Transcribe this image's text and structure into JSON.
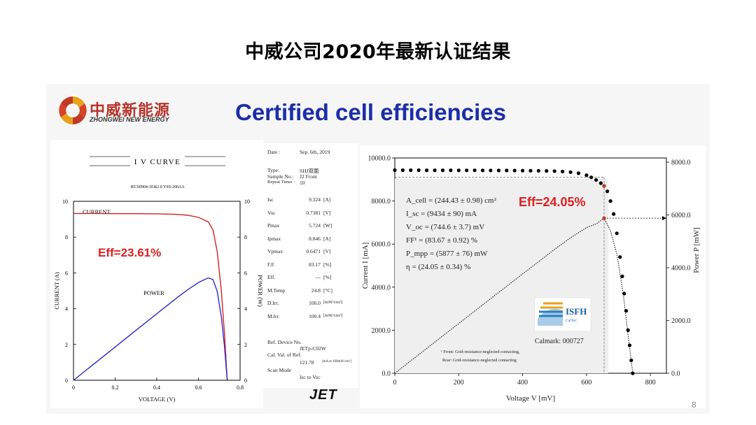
{
  "slide": {
    "title": "中威公司2020年最新认证结果",
    "heading": "Certified cell efficiencies",
    "page_number": "8"
  },
  "logo": {
    "name_cn": "中威新能源",
    "name_en": "ZHONGWEI NEW ENERGY"
  },
  "jet_logo": "JET",
  "left_chart": {
    "header": "I V  CURVE",
    "standard": "IEC60904-1E&2.0  YSS-200AA",
    "current_label": "CURRENT",
    "power_label": "POWER",
    "eff_label": "Eff=23.61%",
    "xlabel": "VOLTAGE (V)",
    "ylabel_left": "CURRENT (A)",
    "ylabel_right": "POWER (W)",
    "x_ticks": [
      "0",
      "0.2",
      "0.4",
      "0.6",
      "0.8"
    ],
    "y_ticks_left": [
      "0",
      "2",
      "4",
      "6",
      "8",
      "10"
    ],
    "y_ticks_right": [
      "0",
      "2",
      "4",
      "6",
      "8",
      "10"
    ]
  },
  "report": {
    "date_label": "Date :",
    "date_value": "Sep. 6th, 2019",
    "type_label": "Type:",
    "type_value": "SHJ双面",
    "sample_label": "Sample No.:",
    "sample_value": "J2 Front",
    "repeat_label": "Repeat Times :",
    "repeat_value": "10",
    "rows": [
      {
        "label": "Isc",
        "value": "9.324",
        "unit": "[A]"
      },
      {
        "label": "Voc",
        "value": "0.7381",
        "unit": "[V]"
      },
      {
        "label": "Pmax",
        "value": "5.724",
        "unit": "[W]"
      },
      {
        "label": "Ipmax",
        "value": "8.846",
        "unit": "[A]"
      },
      {
        "label": "Vpmax",
        "value": "0.6471",
        "unit": "[V]"
      },
      {
        "label": "F.F.",
        "value": "83.17",
        "unit": "[%]"
      },
      {
        "label": "Eff.",
        "value": "—",
        "unit": "[%]"
      },
      {
        "label": "M.Temp",
        "value": "24.8",
        "unit": "[°C]"
      },
      {
        "label": "D.Irr.",
        "value": "100.0",
        "unit": "[mW/cm²]"
      },
      {
        "label": "M.Irr.",
        "value": "100.4",
        "unit": "[mW/cm²]"
      }
    ],
    "ref_device_label": "Ref. Device No.",
    "ref_device_value": "JETp-C02W",
    "cal_label": "Cal. Val. of Ref.",
    "cal_value": "121.78",
    "cal_unit": "[mA at 100mW/cm²]",
    "scan_label": "Scan Mode",
    "scan_value": "Isc to Voc"
  },
  "right_chart": {
    "eff_label": "Eff=24.05%",
    "params": [
      "A_cell = (244.43 ± 0.98) cm²",
      "I_sc = (9434 ± 90) mA",
      "V_oc = (744.6 ± 3.7) mV",
      "FF¹ = (83.67 ± 0.92) %",
      "P_mpp = (5877 ± 76) mW",
      "η = (24.05 ± 0.34) %"
    ],
    "calmark": "Calmark: 000727",
    "footnote_1": "¹ Front: Grid-resistance-neglected contacting,",
    "footnote_2": "Rear: Grid-resistance-neglected contacting",
    "isfh_name": "ISFH",
    "isfh_sub": "CalTeC",
    "xlabel": "Voltage V [mV]",
    "ylabel_left": "Current I [mA]",
    "ylabel_right": "Power P [mW]",
    "x_ticks": [
      "0",
      "200",
      "400",
      "600",
      "800"
    ],
    "y_ticks_left": [
      "0.0",
      "2000.0",
      "4000.0",
      "6000.0",
      "8000.0",
      "10000.0"
    ],
    "y_ticks_right": [
      "0.0",
      "2000.0",
      "4000.0",
      "6000.0",
      "8000.0"
    ]
  },
  "chart_data": [
    {
      "type": "line",
      "title": "I V CURVE",
      "xlabel": "VOLTAGE (V)",
      "ylabel": "CURRENT (A)",
      "y2label": "POWER (W)",
      "xlim": [
        0,
        0.8
      ],
      "ylim": [
        0,
        10
      ],
      "y2lim": [
        0,
        10
      ],
      "series": [
        {
          "name": "CURRENT",
          "axis": "left",
          "color": "#d32222",
          "x": [
            0,
            0.1,
            0.2,
            0.3,
            0.4,
            0.5,
            0.55,
            0.6,
            0.62,
            0.647,
            0.67,
            0.69,
            0.71,
            0.725,
            0.738
          ],
          "y": [
            9.32,
            9.32,
            9.31,
            9.31,
            9.3,
            9.27,
            9.22,
            9.1,
            9.0,
            8.85,
            8.4,
            7.2,
            5.0,
            2.6,
            0.0
          ]
        },
        {
          "name": "POWER",
          "axis": "right",
          "color": "#2a2ad0",
          "x": [
            0,
            0.1,
            0.2,
            0.3,
            0.4,
            0.5,
            0.55,
            0.6,
            0.62,
            0.647,
            0.67,
            0.69,
            0.71,
            0.725,
            0.738
          ],
          "y": [
            0,
            0.93,
            1.86,
            2.79,
            3.72,
            4.64,
            5.07,
            5.46,
            5.58,
            5.72,
            5.63,
            4.97,
            3.55,
            1.89,
            0.0
          ]
        }
      ]
    },
    {
      "type": "scatter",
      "title": "",
      "xlabel": "Voltage V [mV]",
      "ylabel": "Current I [mA]",
      "y2label": "Power P [mW]",
      "xlim": [
        0,
        850
      ],
      "ylim": [
        0,
        10000
      ],
      "y2lim": [
        0,
        8000
      ],
      "series": [
        {
          "name": "Current",
          "axis": "left",
          "color": "#000000",
          "x": [
            0,
            25,
            50,
            75,
            100,
            125,
            150,
            175,
            200,
            225,
            250,
            275,
            300,
            325,
            350,
            375,
            400,
            425,
            450,
            475,
            500,
            525,
            550,
            575,
            600,
            615,
            630,
            645,
            655,
            665,
            675,
            685,
            695,
            705,
            712,
            718,
            724,
            730,
            735,
            740,
            744.6
          ],
          "y": [
            9434,
            9433,
            9432,
            9431,
            9430,
            9429,
            9428,
            9427,
            9426,
            9425,
            9424,
            9423,
            9422,
            9420,
            9418,
            9416,
            9413,
            9410,
            9405,
            9398,
            9388,
            9370,
            9340,
            9290,
            9200,
            9100,
            8980,
            8830,
            8700,
            8450,
            8000,
            7400,
            6500,
            5400,
            4500,
            3700,
            2900,
            2000,
            1300,
            600,
            0
          ]
        },
        {
          "name": "Power",
          "axis": "right",
          "style": "dotted",
          "color": "#000000",
          "x": [
            0,
            100,
            200,
            300,
            400,
            500,
            550,
            600,
            630,
            655,
            675,
            695,
            715,
            735,
            744.6
          ],
          "y": [
            0,
            943,
            1885,
            2827,
            3765,
            4694,
            5137,
            5520,
            5657,
            5877,
            5400,
            4518,
            3000,
            955,
            0
          ]
        }
      ]
    }
  ]
}
